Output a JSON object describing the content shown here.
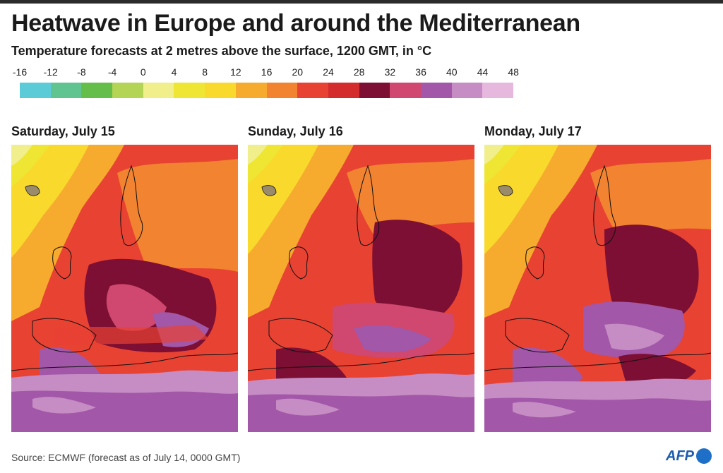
{
  "header": {
    "title": "Heatwave in Europe and around the Mediterranean",
    "subtitle": "Temperature forecasts at 2 metres above the surface, 1200 GMT, in °C"
  },
  "legend": {
    "ticks": [
      "-16",
      "-12",
      "-8",
      "-4",
      "0",
      "4",
      "8",
      "12",
      "16",
      "20",
      "24",
      "28",
      "32",
      "36",
      "40",
      "44",
      "48"
    ],
    "colors": [
      "#5ccbd8",
      "#5fc48f",
      "#66be4a",
      "#b4d455",
      "#f1ef8c",
      "#eee633",
      "#f9d92c",
      "#f6ab2f",
      "#f28330",
      "#e84233",
      "#d42c2c",
      "#7c0f33",
      "#d0476f",
      "#a257a8",
      "#c68cc4",
      "#e6b8dd"
    ]
  },
  "panels": [
    {
      "day": "Saturday, July 15"
    },
    {
      "day": "Sunday, July 16"
    },
    {
      "day": "Monday, July 17"
    }
  ],
  "footer": {
    "source": "Source: ECMWF (forecast as of July 14, 0000 GMT)",
    "logo": "AFP"
  }
}
